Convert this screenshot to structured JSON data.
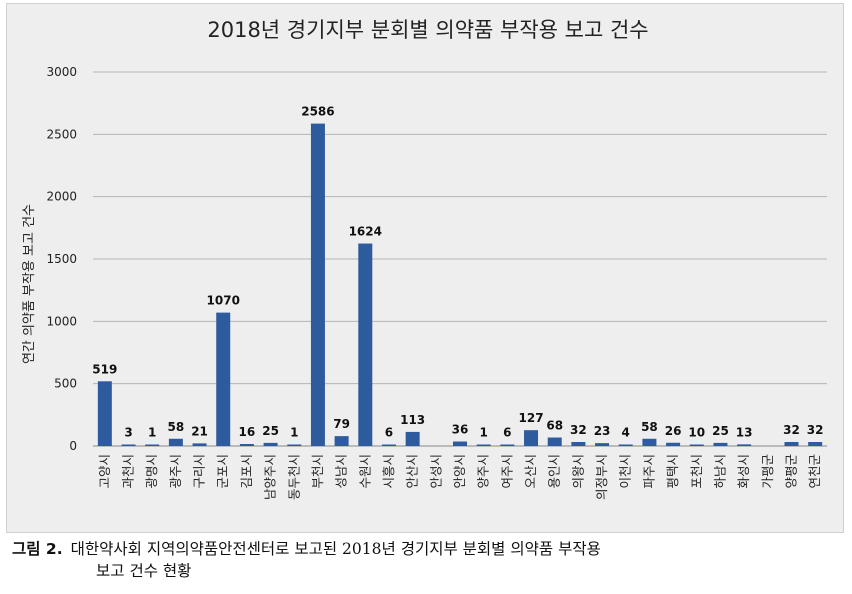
{
  "chart_data": {
    "type": "bar",
    "title": "2018년 경기지부 분회별 의약품 부작용 보고 건수",
    "ylabel": "연간 의약품 부작용 보고 건수",
    "xlabel": "",
    "ylim": [
      0,
      3000
    ],
    "yticks": [
      0,
      500,
      1000,
      1500,
      2000,
      2500,
      3000
    ],
    "grid": true,
    "bar_color": "#2e5b9e",
    "categories": [
      "고양시",
      "과천시",
      "광명시",
      "광주시",
      "구리시",
      "군포시",
      "김포시",
      "남양주시",
      "동두천시",
      "부천시",
      "성남시",
      "수원시",
      "시흥시",
      "안산시",
      "안성시",
      "안양시",
      "양주시",
      "여주시",
      "오산시",
      "용인시",
      "의왕시",
      "의정부시",
      "이천시",
      "파주시",
      "평택시",
      "포천시",
      "하남시",
      "화성시",
      "가평군",
      "양평군",
      "연천군"
    ],
    "values": [
      519,
      3,
      1,
      58,
      21,
      1070,
      16,
      25,
      1,
      2586,
      79,
      1624,
      6,
      113,
      null,
      36,
      1,
      6,
      127,
      68,
      32,
      23,
      4,
      58,
      26,
      10,
      25,
      13,
      null,
      32,
      32
    ]
  },
  "caption": {
    "label": "그림 2.",
    "line1": "대한약사회 지역의약품안전센터로 보고된 2018년 경기지부 분회별 의약품 부작용",
    "line2": "보고 건수 현황"
  }
}
